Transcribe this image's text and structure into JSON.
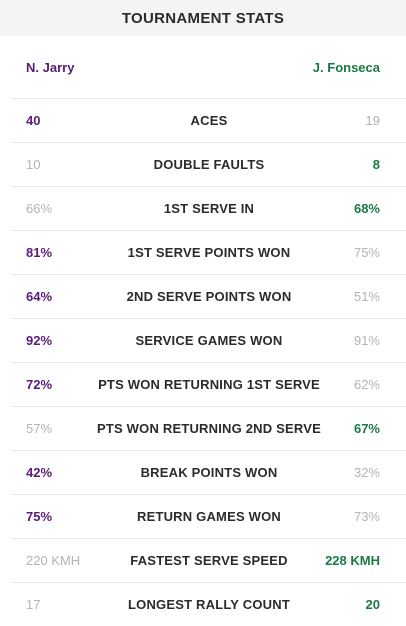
{
  "title": "TOURNAMENT STATS",
  "players": {
    "left": "N. Jarry",
    "right": "J. Fonseca"
  },
  "stats": [
    {
      "label": "ACES",
      "left": "40",
      "right": "19",
      "leader": "left"
    },
    {
      "label": "DOUBLE FAULTS",
      "left": "10",
      "right": "8",
      "leader": "right"
    },
    {
      "label": "1ST SERVE IN",
      "left": "66%",
      "right": "68%",
      "leader": "right"
    },
    {
      "label": "1ST SERVE POINTS WON",
      "left": "81%",
      "right": "75%",
      "leader": "left"
    },
    {
      "label": "2ND SERVE POINTS WON",
      "left": "64%",
      "right": "51%",
      "leader": "left"
    },
    {
      "label": "SERVICE GAMES WON",
      "left": "92%",
      "right": "91%",
      "leader": "left"
    },
    {
      "label": "PTS WON RETURNING 1ST SERVE",
      "left": "72%",
      "right": "62%",
      "leader": "left"
    },
    {
      "label": "PTS WON RETURNING 2ND SERVE",
      "left": "57%",
      "right": "67%",
      "leader": "right"
    },
    {
      "label": "BREAK POINTS WON",
      "left": "42%",
      "right": "32%",
      "leader": "left"
    },
    {
      "label": "RETURN GAMES WON",
      "left": "75%",
      "right": "73%",
      "leader": "left"
    },
    {
      "label": "FASTEST SERVE SPEED",
      "left": "220 KMH",
      "right": "228 KMH",
      "leader": "right"
    },
    {
      "label": "LONGEST RALLY COUNT",
      "left": "17",
      "right": "20",
      "leader": "right"
    }
  ],
  "colors": {
    "left_player": "#5b1b78",
    "right_player": "#1a7a45",
    "muted": "#b3b3b3"
  }
}
